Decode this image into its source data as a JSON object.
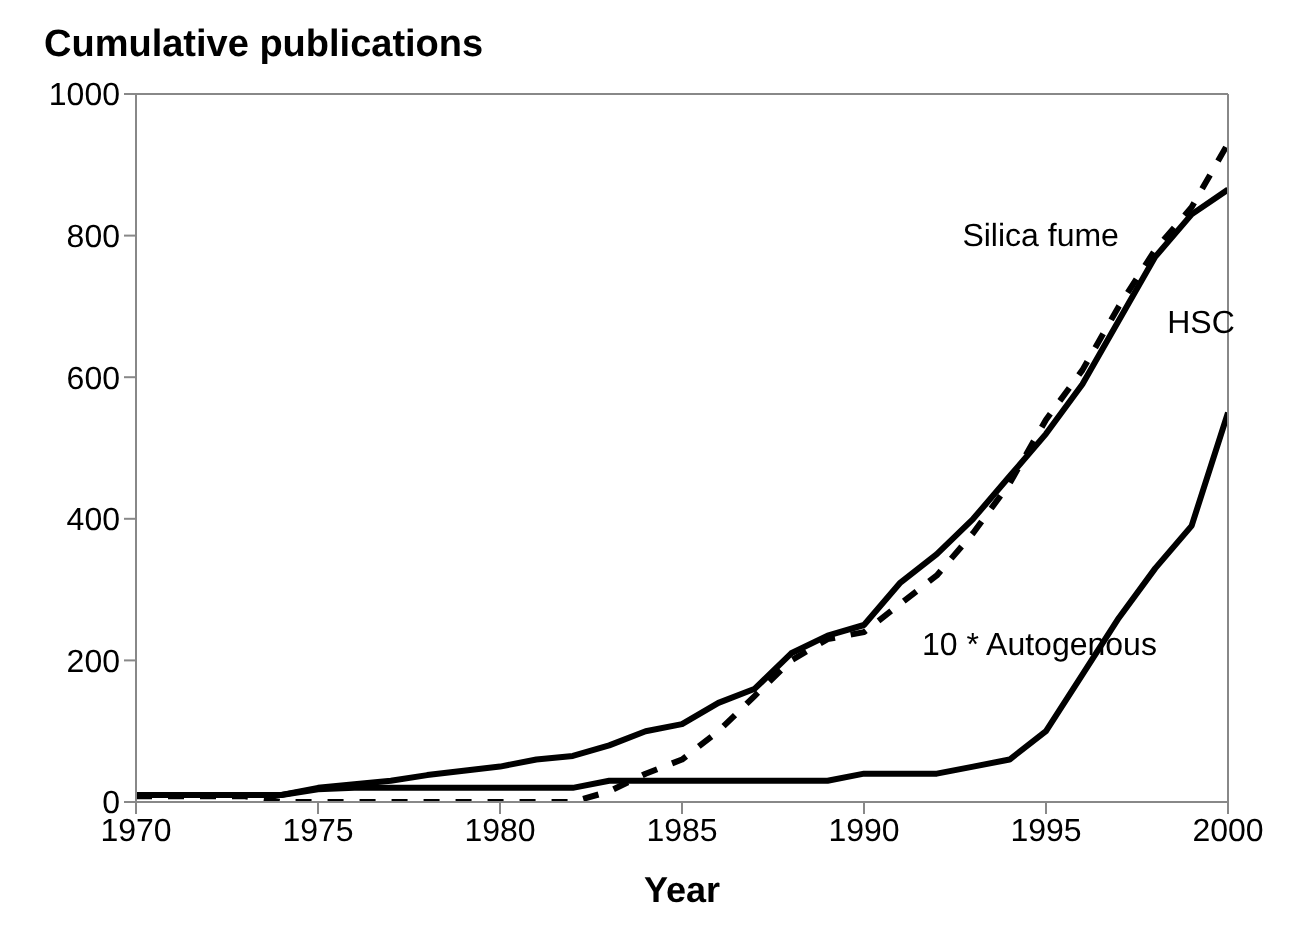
{
  "chart_data": {
    "type": "line",
    "title": "Cumulative publications",
    "xlabel": "Year",
    "x": [
      1970,
      1971,
      1972,
      1973,
      1974,
      1975,
      1976,
      1977,
      1978,
      1979,
      1980,
      1981,
      1982,
      1983,
      1984,
      1985,
      1986,
      1987,
      1988,
      1989,
      1990,
      1991,
      1992,
      1993,
      1994,
      1995,
      1996,
      1997,
      1998,
      1999,
      2000
    ],
    "series": [
      {
        "name": "Silica fume",
        "color": "#000000",
        "line_style": "dashed",
        "values": [
          8,
          8,
          8,
          8,
          0,
          0,
          0,
          0,
          0,
          0,
          0,
          0,
          0,
          15,
          40,
          60,
          100,
          150,
          200,
          230,
          240,
          280,
          320,
          380,
          450,
          540,
          610,
          700,
          780,
          840,
          930
        ]
      },
      {
        "name": "HSC",
        "color": "#000000",
        "line_style": "solid",
        "values": [
          10,
          10,
          10,
          10,
          10,
          20,
          25,
          30,
          38,
          44,
          50,
          60,
          65,
          80,
          100,
          110,
          140,
          160,
          210,
          235,
          250,
          310,
          350,
          400,
          460,
          520,
          590,
          680,
          770,
          830,
          865
        ]
      },
      {
        "name": "10 * Autogenous",
        "color": "#000000",
        "line_style": "solid",
        "values": [
          10,
          10,
          10,
          10,
          10,
          18,
          20,
          20,
          20,
          20,
          20,
          20,
          20,
          30,
          30,
          30,
          30,
          30,
          30,
          30,
          40,
          40,
          40,
          50,
          60,
          100,
          180,
          260,
          330,
          390,
          550
        ]
      }
    ],
    "xlim": [
      1970,
      2000
    ],
    "xticks": [
      1970,
      1975,
      1980,
      1985,
      1990,
      1995,
      2000
    ],
    "ylim": [
      0,
      1000
    ],
    "yticks": [
      0,
      200,
      400,
      600,
      800,
      1000
    ],
    "marker": "none"
  }
}
